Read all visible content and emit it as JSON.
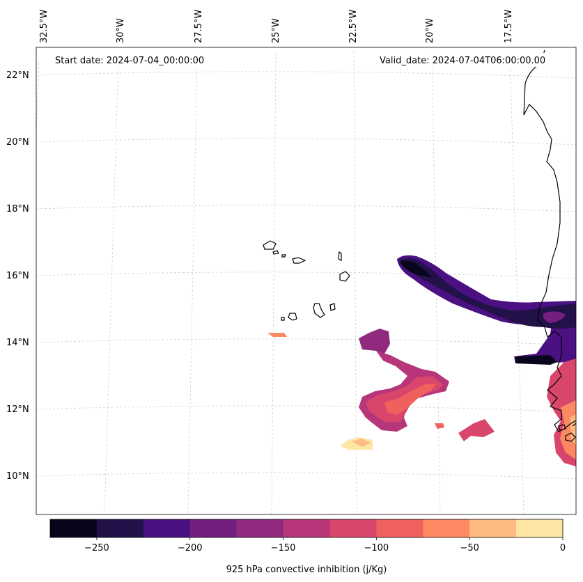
{
  "map": {
    "start_date_label": "Start date: 2024-07-04_00:00:00",
    "valid_date_label": "Valid_date: 2024-07-04T06:00:00.00",
    "lon_labels": [
      "32.5°W",
      "30°W",
      "27.5°W",
      "25°W",
      "22.5°W",
      "20°W",
      "17.5°W"
    ],
    "lat_labels": [
      "22°N",
      "20°N",
      "18°N",
      "16°N",
      "14°N",
      "12°N",
      "10°N"
    ],
    "region": "Cabo Verde islands and West African coast"
  },
  "colorbar": {
    "title": "925 hPa convective inhibition (j/Kg)",
    "min": -275,
    "max": 0,
    "boundaries": [
      -275,
      -250,
      -225,
      -200,
      -175,
      -150,
      -125,
      -100,
      -75,
      -50,
      -25,
      0
    ],
    "tick_labels": [
      "−250",
      "−200",
      "−150",
      "−100",
      "−50",
      "0"
    ],
    "colors": [
      "#07061c",
      "#221249",
      "#4b1082",
      "#721f81",
      "#8f2a7f",
      "#b63679",
      "#d9466b",
      "#f0605d",
      "#fc8961",
      "#febb81",
      "#fde5a4"
    ]
  }
}
